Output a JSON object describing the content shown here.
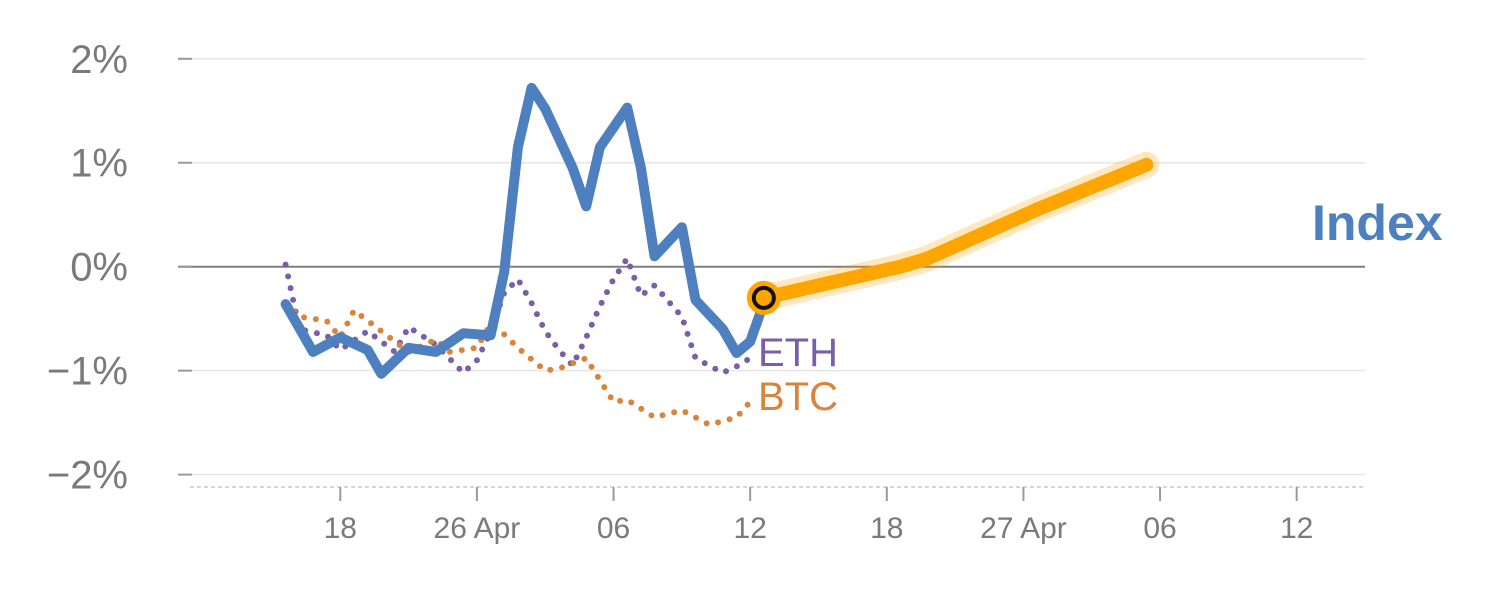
{
  "chart_data": {
    "type": "line",
    "y_tick_labels": [
      "2%",
      "1%",
      "0%",
      "−1%",
      "−2%"
    ],
    "y_tick_values": [
      2,
      1,
      0,
      -1,
      -2
    ],
    "ylim": [
      -2.1,
      2.2
    ],
    "x_tick_labels": [
      "18",
      "26 Apr",
      "06",
      "12",
      "18",
      "27 Apr",
      "06",
      "12"
    ],
    "x_tick_index": [
      5,
      15,
      25,
      35,
      45,
      55,
      65,
      75
    ],
    "xlim": [
      -6,
      80
    ],
    "grid": true,
    "series": [
      {
        "name": "Index",
        "color": "#4e7fbf",
        "style": "solid",
        "points": [
          [
            1,
            -0.36
          ],
          [
            3,
            -0.82
          ],
          [
            5,
            -0.68
          ],
          [
            7,
            -0.8
          ],
          [
            8,
            -1.03
          ],
          [
            10,
            -0.78
          ],
          [
            12,
            -0.82
          ],
          [
            14,
            -0.64
          ],
          [
            16,
            -0.66
          ],
          [
            17,
            -0.05
          ],
          [
            18,
            1.15
          ],
          [
            19,
            1.72
          ],
          [
            20,
            1.52
          ],
          [
            22,
            0.95
          ],
          [
            23,
            0.58
          ],
          [
            24,
            1.15
          ],
          [
            26,
            1.53
          ],
          [
            27,
            0.95
          ],
          [
            28,
            0.1
          ],
          [
            30,
            0.38
          ],
          [
            31,
            -0.32
          ],
          [
            33,
            -0.6
          ],
          [
            34,
            -0.83
          ],
          [
            35,
            -0.72
          ],
          [
            36,
            -0.35
          ]
        ]
      },
      {
        "name": "ETH",
        "color": "#7b5ea8",
        "style": "dotted",
        "points": [
          [
            1,
            0.02
          ],
          [
            2,
            -0.6
          ],
          [
            4,
            -0.66
          ],
          [
            5,
            -0.8
          ],
          [
            7,
            -0.62
          ],
          [
            9,
            -0.82
          ],
          [
            10,
            -0.58
          ],
          [
            12,
            -0.75
          ],
          [
            14,
            -1.02
          ],
          [
            15,
            -0.9
          ],
          [
            16,
            -0.63
          ],
          [
            17,
            -0.25
          ],
          [
            18,
            -0.12
          ],
          [
            19,
            -0.35
          ],
          [
            20,
            -0.62
          ],
          [
            21,
            -0.8
          ],
          [
            22,
            -0.95
          ],
          [
            23,
            -0.68
          ],
          [
            24,
            -0.38
          ],
          [
            25,
            -0.12
          ],
          [
            26,
            0.08
          ],
          [
            27,
            -0.28
          ],
          [
            28,
            -0.18
          ],
          [
            30,
            -0.48
          ],
          [
            31,
            -0.88
          ],
          [
            33,
            -1.02
          ],
          [
            34,
            -0.96
          ],
          [
            35,
            -0.88
          ]
        ]
      },
      {
        "name": "BTC",
        "color": "#d9843a",
        "style": "dotted",
        "points": [
          [
            1,
            -0.35
          ],
          [
            2,
            -0.48
          ],
          [
            4,
            -0.52
          ],
          [
            5,
            -0.68
          ],
          [
            6,
            -0.42
          ],
          [
            8,
            -0.62
          ],
          [
            10,
            -0.82
          ],
          [
            12,
            -0.7
          ],
          [
            13,
            -0.82
          ],
          [
            15,
            -0.78
          ],
          [
            16,
            -0.55
          ],
          [
            17,
            -0.65
          ],
          [
            18,
            -0.78
          ],
          [
            20,
            -1.0
          ],
          [
            21,
            -0.98
          ],
          [
            23,
            -0.88
          ],
          [
            25,
            -1.3
          ],
          [
            26,
            -1.28
          ],
          [
            28,
            -1.45
          ],
          [
            30,
            -1.38
          ],
          [
            32,
            -1.52
          ],
          [
            34,
            -1.45
          ],
          [
            35,
            -1.3
          ]
        ]
      },
      {
        "name": "",
        "color": "#ffa500",
        "style": "thick",
        "points": [
          [
            36,
            -0.3
          ],
          [
            46,
            0.0
          ],
          [
            48,
            0.08
          ],
          [
            56,
            0.55
          ],
          [
            64,
            0.98
          ]
        ]
      }
    ],
    "marker": {
      "x": 36,
      "y": -0.3
    },
    "labels": {
      "index": "Index",
      "eth": "ETH",
      "btc": "BTC"
    }
  }
}
